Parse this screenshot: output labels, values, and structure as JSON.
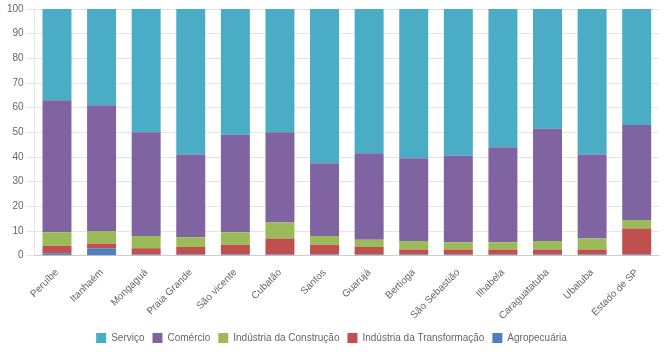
{
  "chart_data": {
    "type": "bar",
    "stacked": true,
    "categories": [
      "Peruíbe",
      "Itanhaém",
      "Mongaguá",
      "Praia Grande",
      "São vicente",
      "Cubatão",
      "Santos",
      "Guarujá",
      "Bertioga",
      "São Sebastião",
      "Ilhabela",
      "Caraguatatuba",
      "Ubatuba",
      "Estado de SP"
    ],
    "series": [
      {
        "name": "Agropecuária",
        "color": "#4F81BD",
        "values": [
          1.0,
          3.0,
          0.5,
          0.5,
          0.5,
          0.5,
          0.5,
          0.5,
          0.5,
          0.5,
          0.5,
          0.5,
          0.5,
          0.5
        ]
      },
      {
        "name": "Indústria da Transformação",
        "color": "#C0504D",
        "values": [
          3.0,
          2.0,
          2.5,
          3.0,
          4.0,
          6.5,
          4.0,
          3.0,
          2.0,
          2.0,
          2.0,
          2.0,
          2.0,
          10.5
        ]
      },
      {
        "name": "Indústria da Construção",
        "color": "#9BBB59",
        "values": [
          5.5,
          5.0,
          5.0,
          4.0,
          5.0,
          6.5,
          3.5,
          3.0,
          3.5,
          3.0,
          3.0,
          3.5,
          4.5,
          3.5
        ]
      },
      {
        "name": "Comércio",
        "color": "#8064A2",
        "values": [
          53.5,
          51.0,
          42.0,
          33.5,
          39.5,
          36.5,
          29.5,
          35.0,
          33.5,
          35.0,
          38.5,
          45.5,
          34.0,
          38.5
        ]
      },
      {
        "name": "Serviço",
        "color": "#4BACC6",
        "values": [
          37.0,
          39.0,
          50.0,
          59.0,
          51.0,
          50.0,
          62.5,
          58.5,
          60.5,
          59.5,
          56.0,
          48.5,
          59.0,
          47.0
        ]
      }
    ],
    "ylim": [
      0,
      100
    ],
    "yticks": [
      0,
      10,
      20,
      30,
      40,
      50,
      60,
      70,
      80,
      90,
      100
    ],
    "grid": true,
    "legend": "bottom"
  }
}
